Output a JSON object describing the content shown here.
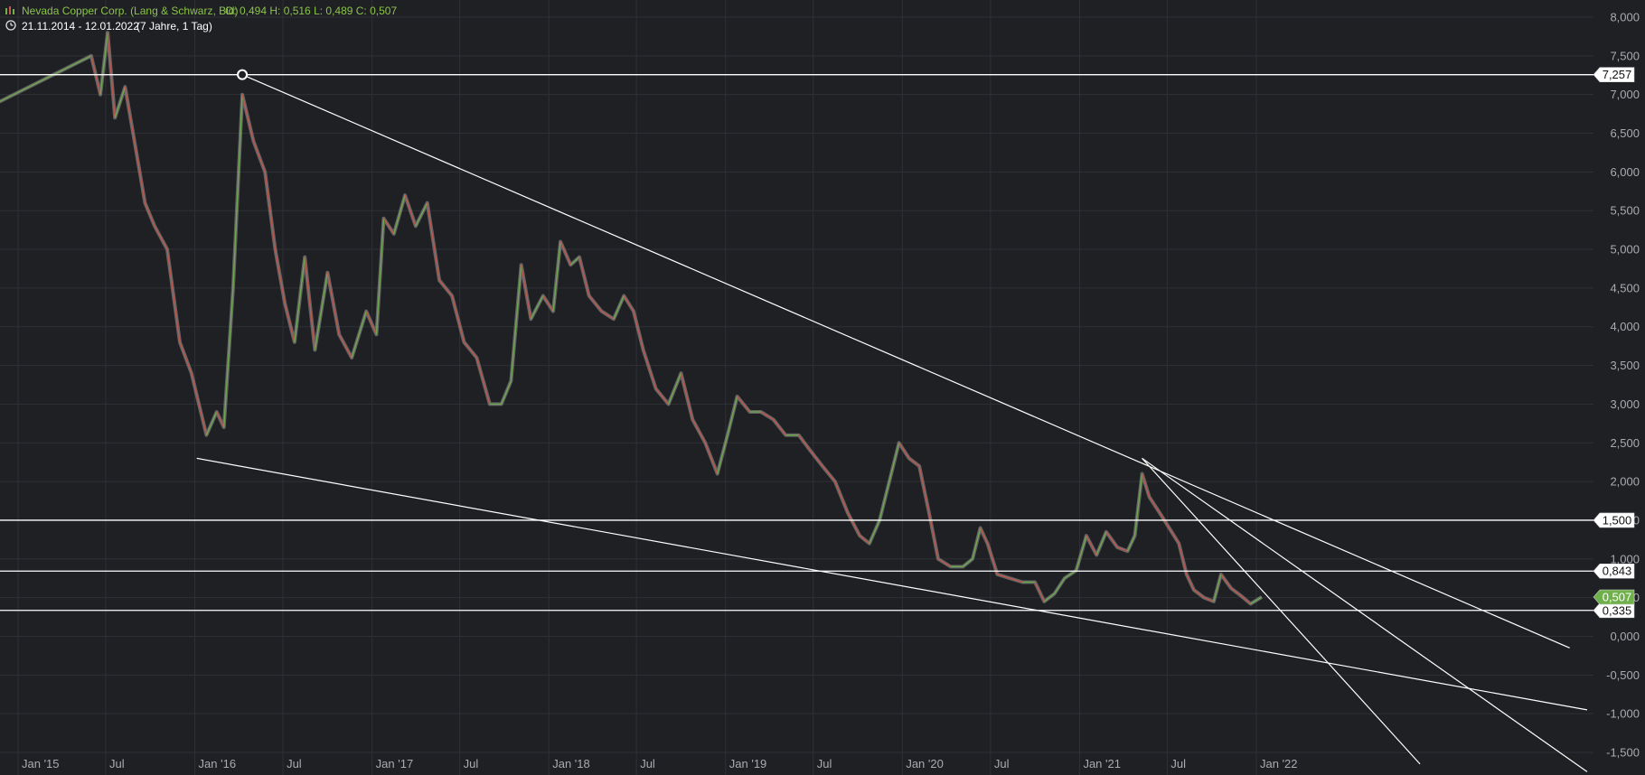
{
  "header": {
    "instrument": "Nevada Copper Corp. (Lang & Schwarz, Bid)",
    "ohlc": "O: 0,494  H: 0,516  L: 0,489  C: 0,507",
    "range": "21.11.2014 - 12.01.2022",
    "period": "(7 Jahre, 1 Tag)",
    "chart_icon": "candlestick-icon",
    "clock_icon": "clock-icon"
  },
  "colors": {
    "background": "#1f2024",
    "grid": "#2e3036",
    "axis_text": "#a9abb0",
    "price_line": "#9a9a9a",
    "up": "#6fb04a",
    "down": "#c8564a",
    "trendline": "#ffffff",
    "header_text": "#8bc34a",
    "last_price_tag": "#6fb04a"
  },
  "chart_data": {
    "type": "line",
    "title": "",
    "xlabel": "",
    "ylabel": "",
    "ylim": [
      -1.65,
      8.25
    ],
    "xlim": [
      "2014-11-21",
      "2023-11-15"
    ],
    "y_ticks": [
      "8,000",
      "7,500",
      "7,000",
      "6,500",
      "6,000",
      "5,500",
      "5,000",
      "4,500",
      "4,000",
      "3,500",
      "3,000",
      "2,500",
      "2,000",
      "1,500",
      "1,000",
      "0,500",
      "0,000",
      "-0,500",
      "-1,000",
      "-1,500"
    ],
    "y_tick_values": [
      8,
      7.5,
      7,
      6.5,
      6,
      5.5,
      5,
      4.5,
      4,
      3.5,
      3,
      2.5,
      2,
      1.5,
      1,
      0.5,
      0,
      -0.5,
      -1,
      -1.5
    ],
    "x_ticks": [
      {
        "label": "Jan '15",
        "date": "2015-01-01"
      },
      {
        "label": "Jul",
        "date": "2015-07-01"
      },
      {
        "label": "Jan '16",
        "date": "2016-01-01"
      },
      {
        "label": "Jul",
        "date": "2016-07-01"
      },
      {
        "label": "Jan '17",
        "date": "2017-01-01"
      },
      {
        "label": "Jul",
        "date": "2017-07-01"
      },
      {
        "label": "Jan '18",
        "date": "2018-01-01"
      },
      {
        "label": "Jul",
        "date": "2018-07-01"
      },
      {
        "label": "Jan '19",
        "date": "2019-01-01"
      },
      {
        "label": "Jul",
        "date": "2019-07-01"
      },
      {
        "label": "Jan '20",
        "date": "2020-01-01"
      },
      {
        "label": "Jul",
        "date": "2020-07-01"
      },
      {
        "label": "Jan '21",
        "date": "2021-01-01"
      },
      {
        "label": "Jul",
        "date": "2021-07-01"
      },
      {
        "label": "Jan '22",
        "date": "2022-01-01"
      }
    ],
    "series": [
      {
        "values": [
          [
            "2014-11-21",
            6.9
          ],
          [
            "2015-06-01",
            7.5
          ],
          [
            "2015-06-20",
            7.0
          ],
          [
            "2015-07-05",
            7.8
          ],
          [
            "2015-07-20",
            6.7
          ],
          [
            "2015-08-10",
            7.1
          ],
          [
            "2015-09-01",
            6.3
          ],
          [
            "2015-09-20",
            5.6
          ],
          [
            "2015-10-10",
            5.3
          ],
          [
            "2015-11-05",
            5.0
          ],
          [
            "2015-12-01",
            3.8
          ],
          [
            "2015-12-25",
            3.4
          ],
          [
            "2016-01-25",
            2.6
          ],
          [
            "2016-02-15",
            2.9
          ],
          [
            "2016-03-01",
            2.7
          ],
          [
            "2016-03-20",
            4.5
          ],
          [
            "2016-04-08",
            7.0
          ],
          [
            "2016-05-01",
            6.4
          ],
          [
            "2016-05-25",
            6.0
          ],
          [
            "2016-06-15",
            5.0
          ],
          [
            "2016-07-05",
            4.3
          ],
          [
            "2016-07-25",
            3.8
          ],
          [
            "2016-08-15",
            4.9
          ],
          [
            "2016-09-05",
            3.7
          ],
          [
            "2016-10-01",
            4.7
          ],
          [
            "2016-10-25",
            3.9
          ],
          [
            "2016-11-20",
            3.6
          ],
          [
            "2016-12-20",
            4.2
          ],
          [
            "2017-01-10",
            3.9
          ],
          [
            "2017-01-25",
            5.4
          ],
          [
            "2017-02-15",
            5.2
          ],
          [
            "2017-03-10",
            5.7
          ],
          [
            "2017-04-01",
            5.3
          ],
          [
            "2017-04-25",
            5.6
          ],
          [
            "2017-05-20",
            4.6
          ],
          [
            "2017-06-15",
            4.4
          ],
          [
            "2017-07-10",
            3.8
          ],
          [
            "2017-08-05",
            3.6
          ],
          [
            "2017-09-01",
            3.0
          ],
          [
            "2017-09-25",
            3.0
          ],
          [
            "2017-10-15",
            3.3
          ],
          [
            "2017-11-05",
            4.8
          ],
          [
            "2017-11-25",
            4.1
          ],
          [
            "2017-12-20",
            4.4
          ],
          [
            "2018-01-10",
            4.2
          ],
          [
            "2018-01-25",
            5.1
          ],
          [
            "2018-02-15",
            4.8
          ],
          [
            "2018-03-05",
            4.9
          ],
          [
            "2018-03-25",
            4.4
          ],
          [
            "2018-04-20",
            4.2
          ],
          [
            "2018-05-15",
            4.1
          ],
          [
            "2018-06-05",
            4.4
          ],
          [
            "2018-06-25",
            4.2
          ],
          [
            "2018-07-15",
            3.7
          ],
          [
            "2018-08-10",
            3.2
          ],
          [
            "2018-09-05",
            3.0
          ],
          [
            "2018-10-01",
            3.4
          ],
          [
            "2018-10-25",
            2.8
          ],
          [
            "2018-11-20",
            2.5
          ],
          [
            "2018-12-15",
            2.1
          ],
          [
            "2019-01-05",
            2.6
          ],
          [
            "2019-01-25",
            3.1
          ],
          [
            "2019-02-20",
            2.9
          ],
          [
            "2019-03-15",
            2.9
          ],
          [
            "2019-04-10",
            2.8
          ],
          [
            "2019-05-05",
            2.6
          ],
          [
            "2019-06-01",
            2.6
          ],
          [
            "2019-06-25",
            2.4
          ],
          [
            "2019-07-20",
            2.2
          ],
          [
            "2019-08-15",
            2.0
          ],
          [
            "2019-09-10",
            1.6
          ],
          [
            "2019-10-05",
            1.3
          ],
          [
            "2019-10-25",
            1.2
          ],
          [
            "2019-11-15",
            1.5
          ],
          [
            "2019-12-05",
            2.0
          ],
          [
            "2019-12-25",
            2.5
          ],
          [
            "2020-01-15",
            2.3
          ],
          [
            "2020-02-05",
            2.2
          ],
          [
            "2020-02-25",
            1.6
          ],
          [
            "2020-03-15",
            1.0
          ],
          [
            "2020-04-10",
            0.9
          ],
          [
            "2020-05-05",
            0.9
          ],
          [
            "2020-05-25",
            1.0
          ],
          [
            "2020-06-10",
            1.4
          ],
          [
            "2020-06-25",
            1.2
          ],
          [
            "2020-07-15",
            0.8
          ],
          [
            "2020-08-10",
            0.75
          ],
          [
            "2020-09-05",
            0.7
          ],
          [
            "2020-10-01",
            0.7
          ],
          [
            "2020-10-20",
            0.45
          ],
          [
            "2020-11-10",
            0.55
          ],
          [
            "2020-12-01",
            0.75
          ],
          [
            "2020-12-25",
            0.85
          ],
          [
            "2021-01-15",
            1.3
          ],
          [
            "2021-02-05",
            1.05
          ],
          [
            "2021-02-25",
            1.35
          ],
          [
            "2021-03-20",
            1.15
          ],
          [
            "2021-04-10",
            1.1
          ],
          [
            "2021-04-25",
            1.3
          ],
          [
            "2021-05-10",
            2.1
          ],
          [
            "2021-05-25",
            1.8
          ],
          [
            "2021-06-15",
            1.6
          ],
          [
            "2021-07-05",
            1.4
          ],
          [
            "2021-07-25",
            1.2
          ],
          [
            "2021-08-10",
            0.8
          ],
          [
            "2021-08-25",
            0.6
          ],
          [
            "2021-09-15",
            0.5
          ],
          [
            "2021-10-05",
            0.45
          ],
          [
            "2021-10-20",
            0.8
          ],
          [
            "2021-11-10",
            0.62
          ],
          [
            "2021-12-01",
            0.52
          ],
          [
            "2021-12-20",
            0.42
          ],
          [
            "2022-01-12",
            0.507
          ]
        ]
      }
    ],
    "horizontal_lines": [
      {
        "value": 7.257,
        "label": "7,257"
      },
      {
        "value": 1.5,
        "label": "1,500"
      },
      {
        "value": 0.843,
        "label": "0,843"
      },
      {
        "value": 0.335,
        "label": "0,335"
      }
    ],
    "last_price": {
      "value": 0.507,
      "label": "0,507"
    },
    "trendlines": [
      {
        "from": [
          "2016-04-08",
          7.257
        ],
        "to": [
          "2023-10-10",
          -0.15
        ],
        "anchor_marker": true
      },
      {
        "from": [
          "2016-01-05",
          2.3
        ],
        "to": [
          "2023-11-15",
          -0.95
        ]
      },
      {
        "from": [
          "2021-05-10",
          2.3
        ],
        "to": [
          "2023-11-15",
          -1.75
        ]
      },
      {
        "from": [
          "2021-05-10",
          2.3
        ],
        "to": [
          "2022-12-05",
          -1.65
        ]
      }
    ],
    "grid": true,
    "y_axis_position": "right",
    "legend": "none"
  }
}
